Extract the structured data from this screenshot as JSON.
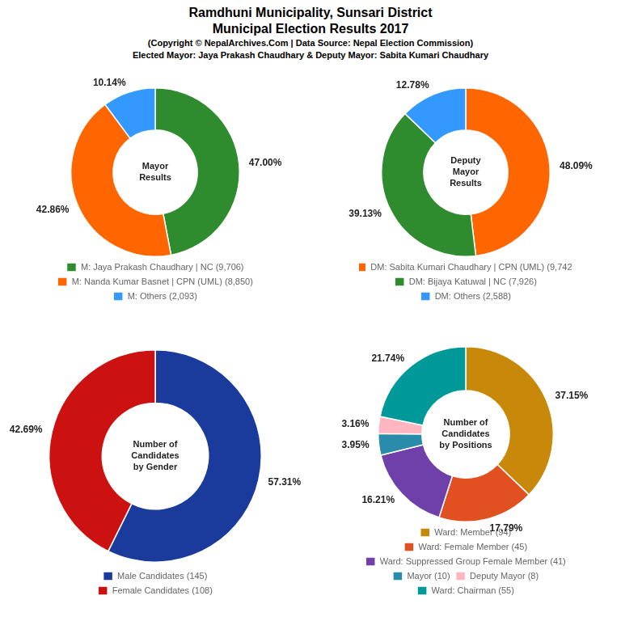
{
  "title": [
    "Ramdhuni Municipality, Sunsari District",
    "Municipal Election Results 2017"
  ],
  "subtitle": [
    "(Copyright © NepalArchives.Com | Data Source: Nepal Election Commission)",
    "Elected Mayor: Jaya Prakash Chaudhary & Deputy Mayor: Sabita Kumari Chaudhary"
  ],
  "chart_data": [
    {
      "type": "doughnut",
      "title": "Mayor\nResults",
      "categories": [
        "M: Jaya Prakash Chaudhary | NC (9,706)",
        "M: Nanda Kumar Basnet | CPN (UML) (8,850)",
        "M: Others (2,093)"
      ],
      "values": [
        47.0,
        42.86,
        10.14
      ],
      "value_labels": [
        "47.00%",
        "42.86%",
        "10.14%"
      ],
      "colors": [
        "#2E8B2E",
        "#FF6600",
        "#3399FF"
      ],
      "data_labels": true,
      "legend": "bottom"
    },
    {
      "type": "doughnut",
      "title": "Deputy\nMayor\nResults",
      "categories": [
        "DM: Sabita Kumari Chaudhary | CPN (UML) (9,742)",
        "DM: Bijaya Katuwal | NC (7,926)",
        "DM: Others (2,588)"
      ],
      "values": [
        48.09,
        39.13,
        12.78
      ],
      "value_labels": [
        "48.09%",
        "39.13%",
        "12.78%"
      ],
      "colors": [
        "#FF6600",
        "#2E8B2E",
        "#3399FF"
      ],
      "data_labels": true,
      "legend": "bottom"
    },
    {
      "type": "doughnut",
      "title": "Number of\nCandidates\nby Gender",
      "categories": [
        "Male Candidates (145)",
        "Female Candidates (108)"
      ],
      "values": [
        57.31,
        42.69
      ],
      "value_labels": [
        "57.31%",
        "42.69%"
      ],
      "colors": [
        "#1A3A9C",
        "#CC1111"
      ],
      "data_labels": true,
      "legend": "bottom"
    },
    {
      "type": "doughnut",
      "title": "Number of\nCandidates\nby Positions",
      "categories": [
        "Ward: Member (94)",
        "Ward: Female Member (45)",
        "Ward: Suppressed Group Female Member (41)",
        "Mayor (10)",
        "Deputy Mayor (8)",
        "Ward: Chairman (55)"
      ],
      "values": [
        37.15,
        17.79,
        16.21,
        3.95,
        3.16,
        21.74
      ],
      "value_labels": [
        "37.15%",
        "17.79%",
        "16.21%",
        "3.95%",
        "3.16%",
        "21.74%"
      ],
      "colors": [
        "#C8880A",
        "#E05020",
        "#7040AA",
        "#2B8BAA",
        "#FFB6C1",
        "#009999"
      ],
      "data_labels": true,
      "legend": "bottom"
    }
  ]
}
